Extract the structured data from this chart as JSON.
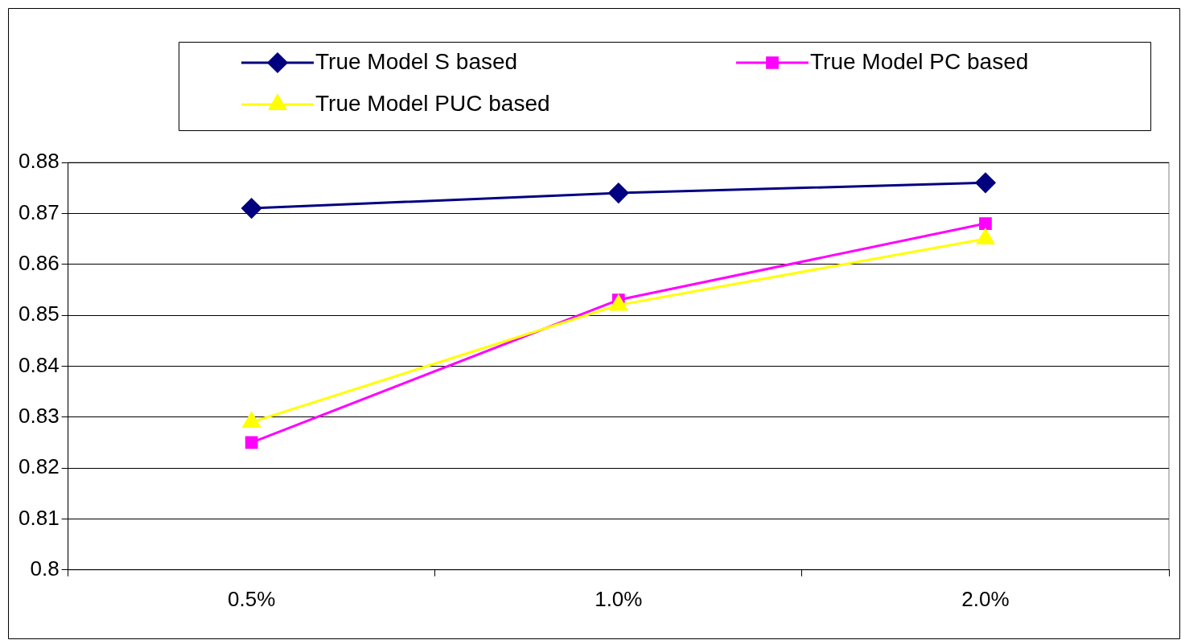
{
  "chart_data": {
    "type": "line",
    "categories": [
      "0.5%",
      "1.0%",
      "2.0%"
    ],
    "series": [
      {
        "name": "True Model S based",
        "color": "#000080",
        "marker": "diamond",
        "values": [
          0.871,
          0.874,
          0.876
        ]
      },
      {
        "name": "True Model PC based",
        "color": "#ff00ff",
        "marker": "square",
        "values": [
          0.825,
          0.853,
          0.868
        ]
      },
      {
        "name": "True Model PUC based",
        "color": "#ffff00",
        "marker": "triangle",
        "values": [
          0.829,
          0.852,
          0.865
        ]
      }
    ],
    "ylim": [
      0.8,
      0.88
    ],
    "yticks": [
      0.8,
      0.81,
      0.82,
      0.83,
      0.84,
      0.85,
      0.86,
      0.87,
      0.88
    ],
    "grid": "y",
    "legend": "top"
  }
}
